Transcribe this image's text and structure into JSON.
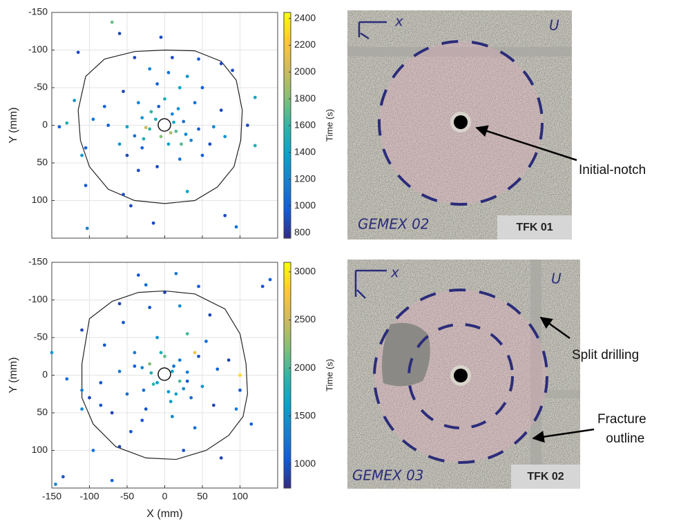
{
  "chart_data": [
    {
      "type": "scatter",
      "ylabel": "Y (mm)",
      "colorbar_label": "Time (s)",
      "show_xtick_labels": false,
      "xlim": [
        -150,
        150
      ],
      "ylim": [
        -150,
        150
      ],
      "y_reversed": true,
      "grid": true,
      "xticks": [
        -150,
        -100,
        -50,
        0,
        50,
        100
      ],
      "yticks": [
        -150,
        -100,
        -50,
        0,
        50,
        100
      ],
      "clim": [
        760,
        2445
      ],
      "cticks": [
        800,
        1000,
        1200,
        1400,
        1600,
        1800,
        2000,
        2200,
        2400
      ],
      "colormap": [
        "#352a87",
        "#0f5cdd",
        "#1481d6",
        "#06a4ca",
        "#2eb7a4",
        "#87bf77",
        "#d1bb59",
        "#fec832",
        "#f9fb0e"
      ],
      "x": [
        -70,
        -60,
        -5,
        -115,
        -40,
        10,
        45,
        75,
        90,
        -20,
        5,
        30,
        -10,
        20,
        50,
        -55,
        -120,
        -80,
        -35,
        0,
        40,
        120,
        75,
        -140,
        -130,
        -75,
        -50,
        -30,
        -20,
        -12,
        10,
        15,
        25,
        45,
        65,
        110,
        -95,
        -105,
        -110,
        -60,
        -30,
        5,
        35,
        60,
        80,
        120,
        -50,
        -10,
        20,
        50,
        -35,
        -105,
        -55,
        30,
        80,
        95,
        -45,
        -15,
        -103,
        -25,
        8,
        -18,
        -5,
        18,
        28,
        -40,
        12,
        -8,
        22,
        -28
      ],
      "y": [
        -137,
        -122,
        -117,
        -97,
        -90,
        -90,
        -88,
        -82,
        -73,
        -75,
        -70,
        -65,
        -55,
        -50,
        -50,
        -45,
        -33,
        -25,
        -30,
        -35,
        -30,
        -37,
        -20,
        2,
        -3,
        0,
        2,
        -10,
        5,
        -8,
        -15,
        8,
        -5,
        5,
        2,
        0,
        -8,
        30,
        40,
        25,
        30,
        25,
        20,
        25,
        15,
        27,
        40,
        55,
        45,
        40,
        60,
        80,
        92,
        88,
        120,
        135,
        107,
        130,
        137,
        3,
        10,
        -18,
        15,
        -22,
        12,
        14,
        -4,
        -25,
        25,
        18
      ],
      "values": [
        1750,
        900,
        900,
        900,
        900,
        900,
        1000,
        900,
        900,
        1200,
        1100,
        1300,
        1000,
        1400,
        1000,
        900,
        1300,
        1000,
        1200,
        1500,
        1100,
        1400,
        900,
        1000,
        1500,
        1000,
        1400,
        1300,
        1600,
        1500,
        1200,
        1700,
        1100,
        1000,
        1200,
        900,
        1100,
        1000,
        1300,
        1300,
        1000,
        1400,
        1200,
        900,
        1300,
        1500,
        900,
        900,
        1100,
        1000,
        900,
        1000,
        900,
        1400,
        900,
        1100,
        900,
        900,
        1200,
        2000,
        1900,
        1600,
        1800,
        1300,
        1200,
        1100,
        1400,
        1000,
        1700,
        1500
      ],
      "outline": {
        "x": [
          -105,
          -80,
          -40,
          0,
          40,
          75,
          95,
          103,
          101,
          92,
          70,
          40,
          0,
          -40,
          -75,
          -100,
          -112,
          -115,
          -105
        ],
        "y": [
          -65,
          -88,
          -98,
          -100,
          -99,
          -85,
          -60,
          -20,
          20,
          55,
          82,
          100,
          104,
          100,
          85,
          55,
          20,
          -20,
          -65
        ]
      }
    },
    {
      "type": "scatter",
      "xlabel": "X (mm)",
      "ylabel": "Y (mm)",
      "colorbar_label": "Time (s)",
      "show_xtick_labels": true,
      "xlim": [
        -150,
        150
      ],
      "ylim": [
        -150,
        150
      ],
      "y_reversed": true,
      "grid": true,
      "xticks": [
        -150,
        -100,
        -50,
        0,
        50,
        100
      ],
      "yticks": [
        -150,
        -100,
        -50,
        0,
        50,
        100
      ],
      "clim": [
        750,
        3100
      ],
      "cticks": [
        1000,
        1500,
        2000,
        2500,
        3000
      ],
      "colormap": [
        "#352a87",
        "#0f5cdd",
        "#1481d6",
        "#06a4ca",
        "#2eb7a4",
        "#87bf77",
        "#d1bb59",
        "#fec832",
        "#f9fb0e"
      ],
      "x": [
        -35,
        -25,
        15,
        0,
        45,
        -60,
        -20,
        20,
        60,
        140,
        130,
        -110,
        -55,
        -10,
        30,
        55,
        85,
        -80,
        -40,
        0,
        40,
        45,
        100,
        -150,
        -130,
        -85,
        -60,
        -30,
        -18,
        -10,
        12,
        20,
        30,
        50,
        70,
        100,
        -100,
        -110,
        -85,
        -50,
        -25,
        8,
        35,
        65,
        95,
        115,
        -70,
        -30,
        10,
        40,
        -45,
        -110,
        -60,
        25,
        75,
        -135,
        -145,
        -95,
        -70,
        15,
        -20,
        5,
        -15,
        20,
        -5,
        25,
        -28,
        10,
        30,
        -40
      ],
      "y": [
        -133,
        -120,
        -135,
        -110,
        -118,
        -95,
        -90,
        -92,
        -80,
        -127,
        -118,
        -60,
        -70,
        -50,
        -55,
        -45,
        -20,
        -40,
        -30,
        -25,
        -30,
        -25,
        0,
        -30,
        5,
        10,
        -5,
        -10,
        -3,
        10,
        -12,
        8,
        -4,
        15,
        -8,
        20,
        30,
        20,
        40,
        25,
        45,
        35,
        30,
        40,
        45,
        65,
        50,
        60,
        55,
        70,
        75,
        45,
        95,
        100,
        110,
        135,
        145,
        100,
        140,
        25,
        -15,
        22,
        12,
        -20,
        -30,
        18,
        20,
        -5,
        8,
        -12
      ],
      "values": [
        1000,
        1200,
        1300,
        900,
        1100,
        900,
        1000,
        1400,
        900,
        1100,
        1000,
        900,
        1000,
        1500,
        2000,
        1200,
        900,
        1000,
        1300,
        2100,
        2700,
        1000,
        2900,
        1500,
        1200,
        1000,
        1300,
        1400,
        1800,
        1600,
        1200,
        2000,
        1300,
        1500,
        1100,
        1000,
        900,
        1300,
        1000,
        1200,
        1000,
        1600,
        1200,
        900,
        1300,
        1100,
        900,
        1000,
        1400,
        1200,
        1000,
        1400,
        900,
        1000,
        900,
        1000,
        1400,
        1200,
        1100,
        1700,
        2200,
        1500,
        1900,
        1300,
        1800,
        1400,
        1200,
        1600,
        1000,
        1100
      ],
      "outline": {
        "x": [
          -100,
          -70,
          -35,
          0,
          40,
          80,
          100,
          108,
          110,
          104,
          85,
          55,
          15,
          -25,
          -65,
          -95,
          -110,
          -110,
          -100
        ],
        "y": [
          -75,
          -98,
          -110,
          -112,
          -108,
          -88,
          -55,
          -15,
          25,
          55,
          80,
          100,
          112,
          110,
          95,
          65,
          30,
          -15,
          -75
        ]
      }
    }
  ],
  "photos": [
    {
      "label": "TFK 01",
      "annotations": [
        "Initial-notch"
      ],
      "handwriting": [
        "GEMEX 02",
        "x",
        "U"
      ]
    },
    {
      "label": "TFK 02",
      "annotations": [
        "Split drilling",
        "Fracture outline"
      ],
      "handwriting": [
        "GEMEX 03",
        "x",
        "U"
      ]
    }
  ]
}
